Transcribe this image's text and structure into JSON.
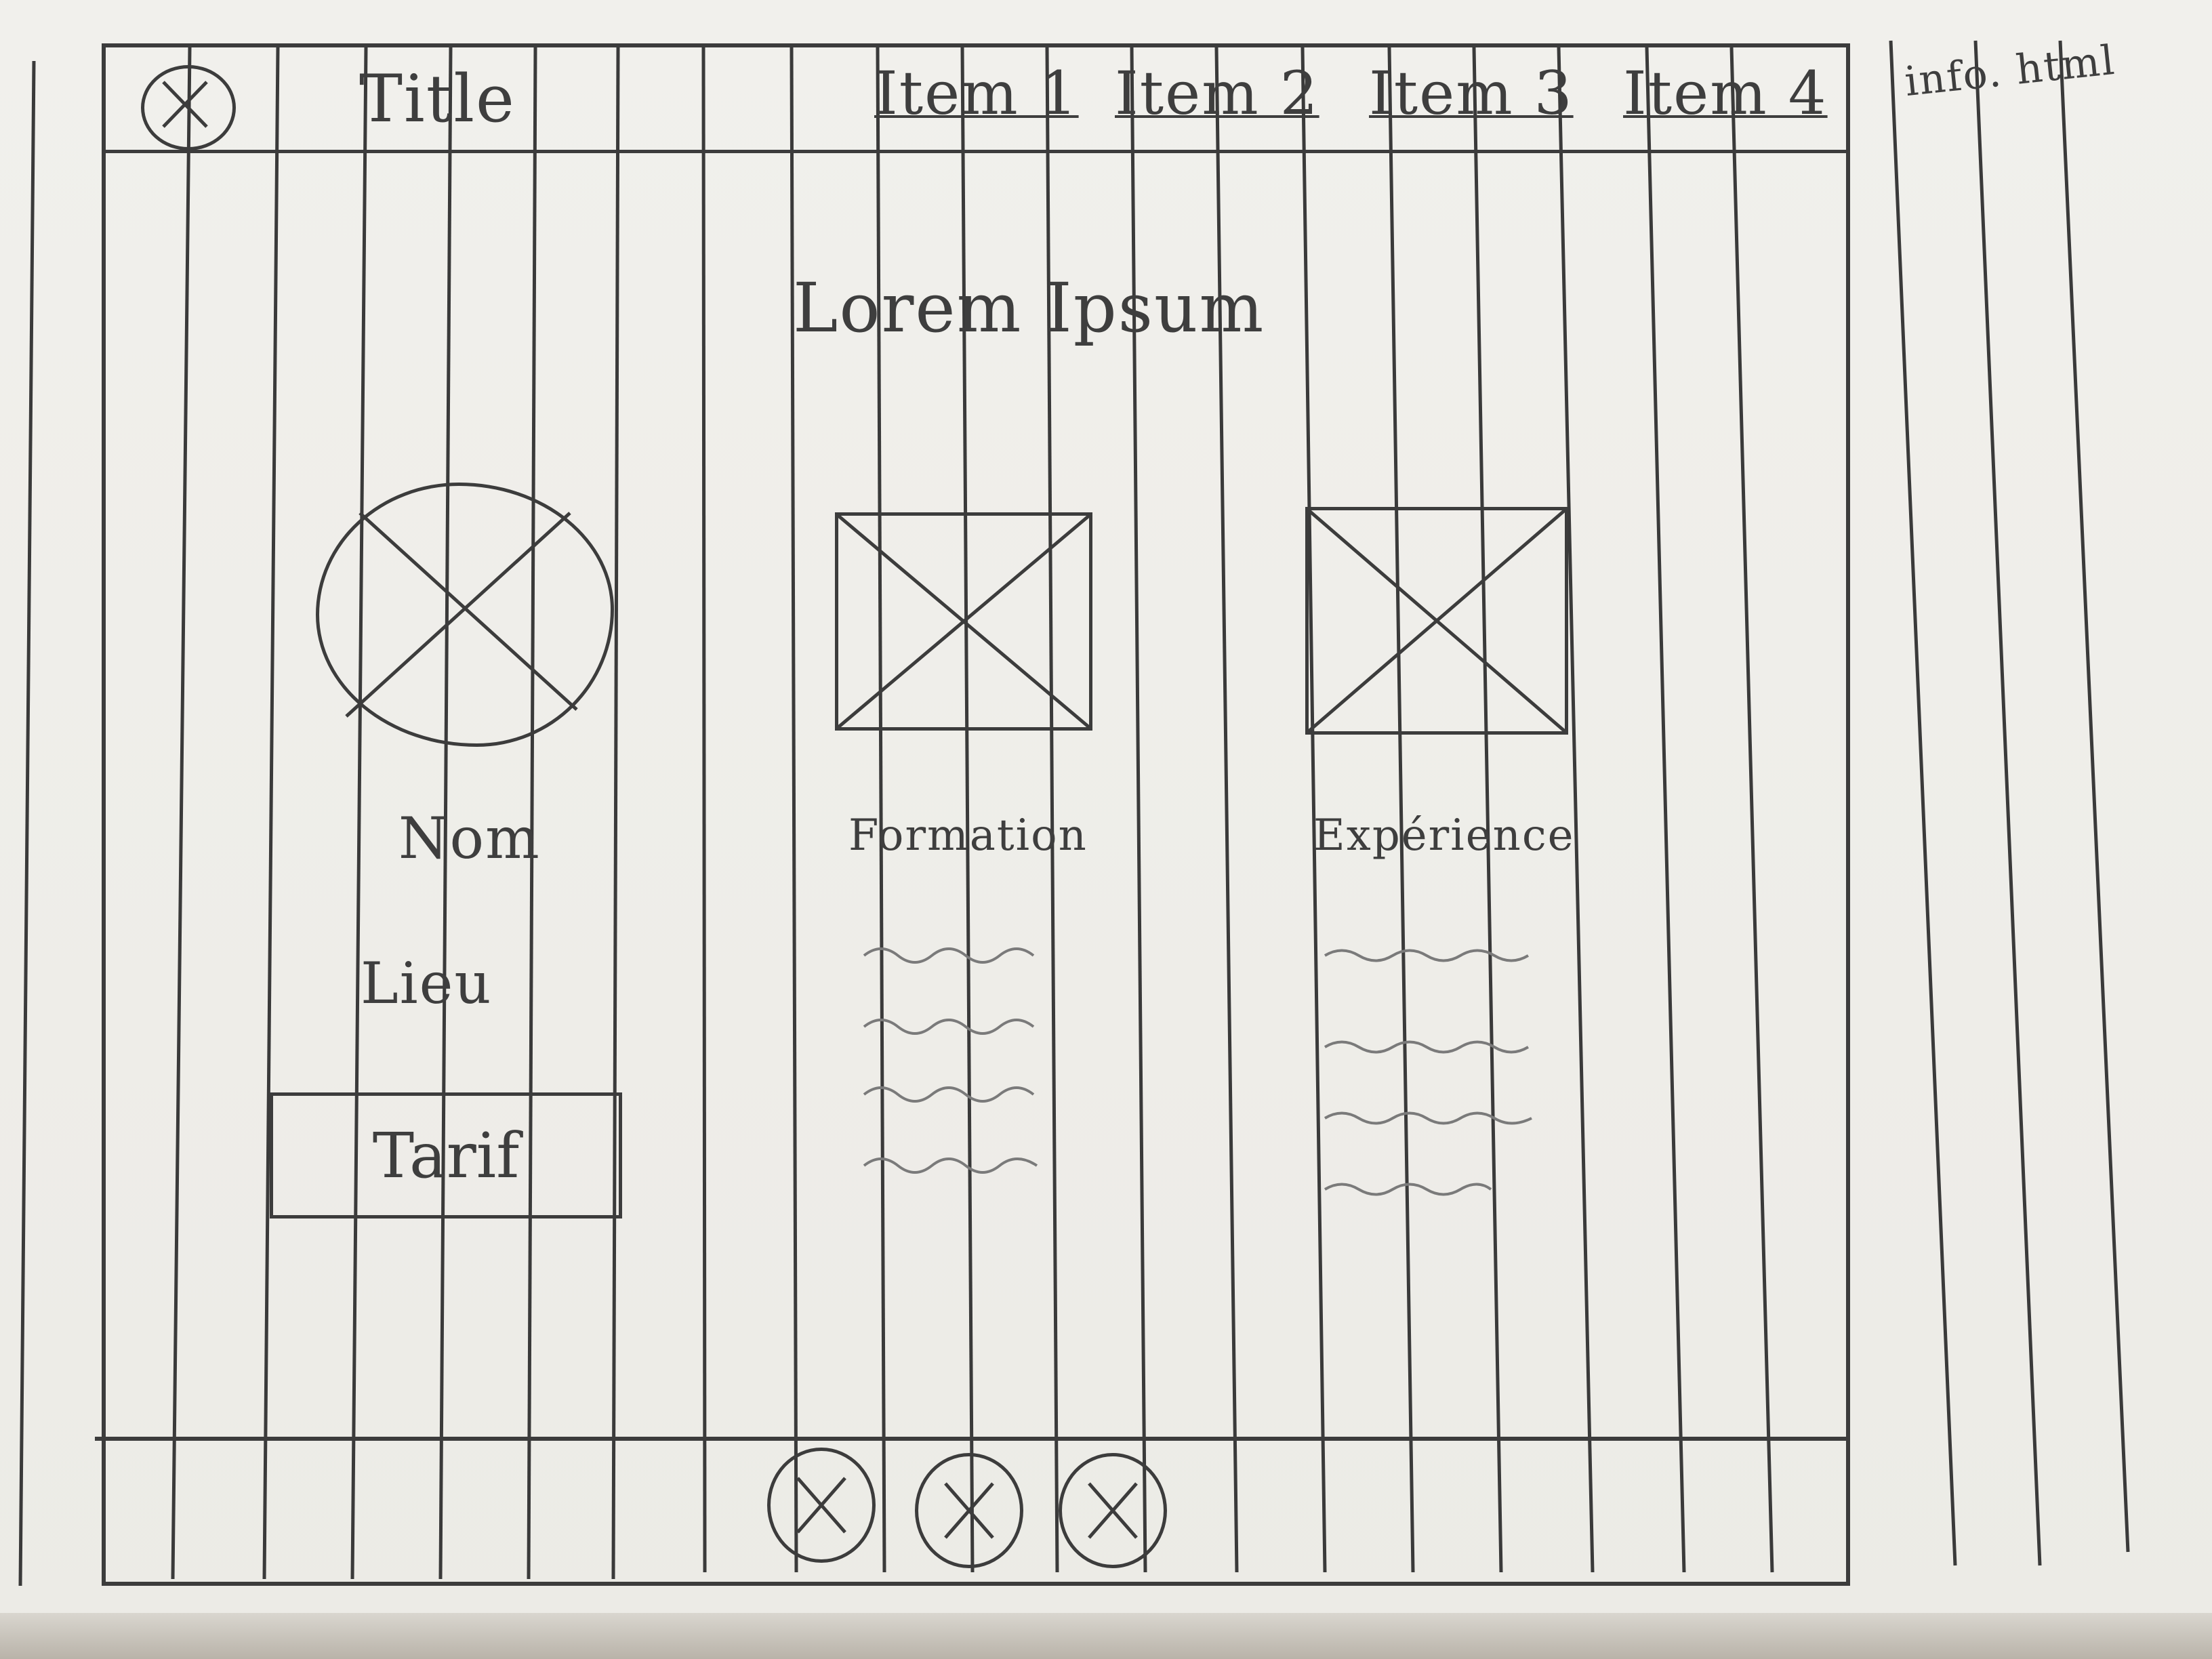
{
  "header": {
    "title": "Title",
    "nav_items": [
      "Item 1",
      "Item 2",
      "Item 3",
      "Item 4"
    ],
    "logo_icon": "placeholder-x-icon"
  },
  "side_note": "info. html",
  "main": {
    "heading": "Lorem Ipsum",
    "profile": {
      "avatar_icon": "image-placeholder-icon",
      "name_label": "Nom",
      "place_label": "Lieu",
      "price_button_label": "Tarif"
    },
    "columns": [
      {
        "image_icon": "image-placeholder-icon",
        "label": "Formation",
        "text_lines": 4
      },
      {
        "image_icon": "image-placeholder-icon",
        "label": "Expérience",
        "text_lines": 4
      }
    ]
  },
  "footer": {
    "buttons": [
      {
        "icon": "placeholder-x-icon"
      },
      {
        "icon": "placeholder-x-icon"
      },
      {
        "icon": "placeholder-x-icon"
      }
    ]
  },
  "colors": {
    "paper": "#ecebe6",
    "ink": "#3c3c3c",
    "pencil": "#7a7a7a"
  }
}
